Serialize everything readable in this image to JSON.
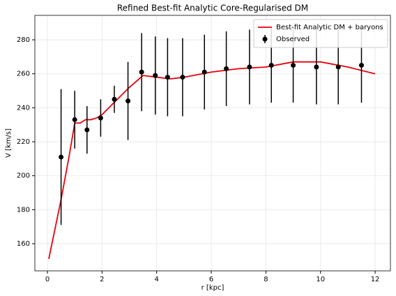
{
  "chart_data": {
    "type": "line",
    "title": "Refined Best-fit Analytic Core-Regularised DM",
    "x_label": "r [kpc]",
    "y_label": "V [km/s]",
    "xlim": [
      -0.46,
      12.56
    ],
    "ylim": [
      144,
      294.4
    ],
    "xticks": [
      0,
      2,
      4,
      6,
      8,
      10,
      12
    ],
    "yticks": [
      160,
      180,
      200,
      220,
      240,
      260,
      280
    ],
    "grid": true,
    "legend": "upper right",
    "series": [
      {
        "name": "Best-fit Analytic DM + baryons",
        "type": "line",
        "color": "#e8000b",
        "x": [
          0.05,
          0.5,
          0.8,
          1.0,
          1.2,
          1.4,
          1.6,
          1.8,
          2.0,
          2.5,
          3.0,
          3.5,
          4.0,
          4.5,
          5.0,
          6.0,
          7.0,
          8.0,
          9.0,
          10.0,
          11.0,
          12.0
        ],
        "values": [
          151,
          186,
          212,
          231,
          231,
          233,
          233,
          234,
          236,
          244,
          252,
          259,
          258,
          257,
          258,
          261,
          263,
          264,
          267,
          267,
          264,
          260
        ]
      },
      {
        "name": "Observed",
        "type": "errorbar",
        "color": "#000000",
        "x": [
          0.5,
          1.0,
          1.45,
          1.95,
          2.45,
          2.95,
          3.45,
          3.95,
          4.4,
          4.95,
          5.75,
          6.55,
          7.4,
          8.2,
          9.0,
          9.85,
          10.65,
          11.5
        ],
        "values": [
          211,
          233,
          227,
          234,
          245,
          244,
          261,
          259,
          258,
          258,
          261,
          263,
          264,
          265,
          265,
          264,
          264,
          265
        ],
        "errors": [
          40,
          17,
          14,
          11,
          8,
          23,
          23,
          23,
          23,
          23,
          22,
          22,
          22,
          22,
          22,
          22,
          22,
          22
        ]
      }
    ]
  }
}
